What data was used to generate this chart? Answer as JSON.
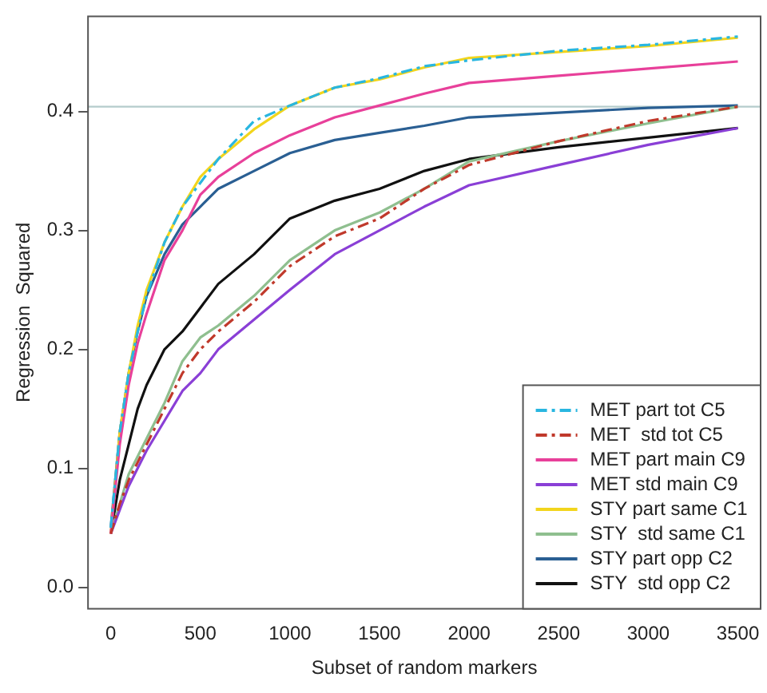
{
  "chart_data": {
    "type": "line",
    "xlabel": "Subset of random markers",
    "ylabel": "Regression  Squared",
    "x": [
      0,
      50,
      100,
      150,
      200,
      300,
      400,
      500,
      600,
      800,
      1000,
      1250,
      1500,
      1750,
      2000,
      2500,
      3000,
      3500
    ],
    "series": [
      {
        "name": "MET part tot C5",
        "color": "#29b6e0",
        "line_style": "dashed",
        "values": [
          0.05,
          0.13,
          0.18,
          0.215,
          0.245,
          0.29,
          0.32,
          0.34,
          0.36,
          0.392,
          0.405,
          0.42,
          0.428,
          0.438,
          0.443,
          0.451,
          0.456,
          0.463
        ]
      },
      {
        "name": "MET  std tot C5",
        "color": "#c0392b",
        "line_style": "dashed",
        "values": [
          0.045,
          0.07,
          0.09,
          0.105,
          0.12,
          0.15,
          0.18,
          0.2,
          0.215,
          0.24,
          0.27,
          0.295,
          0.31,
          0.335,
          0.355,
          0.375,
          0.392,
          0.404
        ]
      },
      {
        "name": "MET part main C9",
        "color": "#e8409a",
        "values": [
          0.045,
          0.12,
          0.17,
          0.205,
          0.23,
          0.275,
          0.3,
          0.33,
          0.345,
          0.365,
          0.38,
          0.395,
          0.405,
          0.415,
          0.424,
          0.43,
          0.436,
          0.442
        ]
      },
      {
        "name": "MET std main C9",
        "color": "#8a3fd6",
        "values": [
          0.045,
          0.065,
          0.085,
          0.1,
          0.115,
          0.14,
          0.165,
          0.18,
          0.2,
          0.225,
          0.25,
          0.28,
          0.3,
          0.32,
          0.338,
          0.355,
          0.372,
          0.386
        ]
      },
      {
        "name": "STY part same C1",
        "color": "#f2d51c",
        "values": [
          0.045,
          0.13,
          0.18,
          0.22,
          0.25,
          0.29,
          0.32,
          0.345,
          0.36,
          0.385,
          0.405,
          0.42,
          0.427,
          0.437,
          0.445,
          0.45,
          0.455,
          0.462
        ]
      },
      {
        "name": "STY  std same C1",
        "color": "#8fbf8f",
        "values": [
          0.045,
          0.07,
          0.095,
          0.11,
          0.125,
          0.155,
          0.19,
          0.21,
          0.22,
          0.245,
          0.275,
          0.3,
          0.315,
          0.335,
          0.358,
          0.375,
          0.39,
          0.404
        ]
      },
      {
        "name": "STY part opp C2",
        "color": "#2a5f93",
        "values": [
          0.05,
          0.13,
          0.18,
          0.215,
          0.245,
          0.28,
          0.305,
          0.32,
          0.335,
          0.35,
          0.365,
          0.376,
          0.382,
          0.388,
          0.395,
          0.399,
          0.403,
          0.405
        ]
      },
      {
        "name": "STY  std opp C2",
        "color": "#111111",
        "values": [
          0.045,
          0.09,
          0.12,
          0.15,
          0.17,
          0.2,
          0.215,
          0.235,
          0.255,
          0.28,
          0.31,
          0.325,
          0.335,
          0.35,
          0.36,
          0.37,
          0.378,
          0.386
        ]
      }
    ],
    "xlim": [
      -127,
      3627
    ],
    "ylim": [
      -0.018,
      0.48
    ],
    "xticks": [
      0,
      500,
      1000,
      1500,
      2000,
      2500,
      3000,
      3500
    ],
    "yticks": [
      {
        "value": 0,
        "label": "0.0"
      },
      {
        "value": 0.1,
        "label": "0.1"
      },
      {
        "value": 0.2,
        "label": "0.2"
      },
      {
        "value": 0.3,
        "label": "0.3"
      },
      {
        "value": 0.4,
        "label": "0.4"
      }
    ],
    "ref_lines": [
      {
        "axis": "y",
        "value": 0.404,
        "color": "#b4cccc"
      }
    ],
    "legend": "bottom right",
    "grid": false,
    "marker": "none",
    "line_style": "solid"
  }
}
